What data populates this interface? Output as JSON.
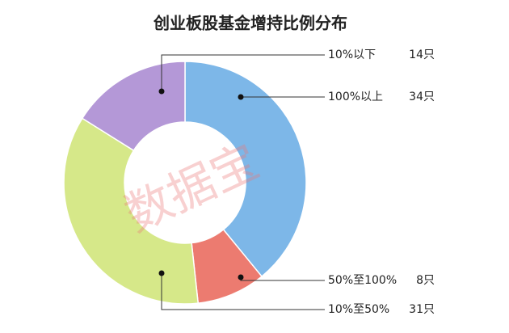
{
  "chart_data": {
    "type": "donut",
    "title": "创业板股基金增持比例分布",
    "watermark": "数据宝",
    "categories": [
      "100%以上",
      "50%至100%",
      "10%至50%",
      "10%以下"
    ],
    "values": [
      34,
      8,
      31,
      14
    ],
    "value_labels": [
      "34只",
      "8只",
      "31只",
      "14只"
    ],
    "colors": [
      "#7db7e8",
      "#ec7b70",
      "#d6e889",
      "#b498d7"
    ]
  }
}
